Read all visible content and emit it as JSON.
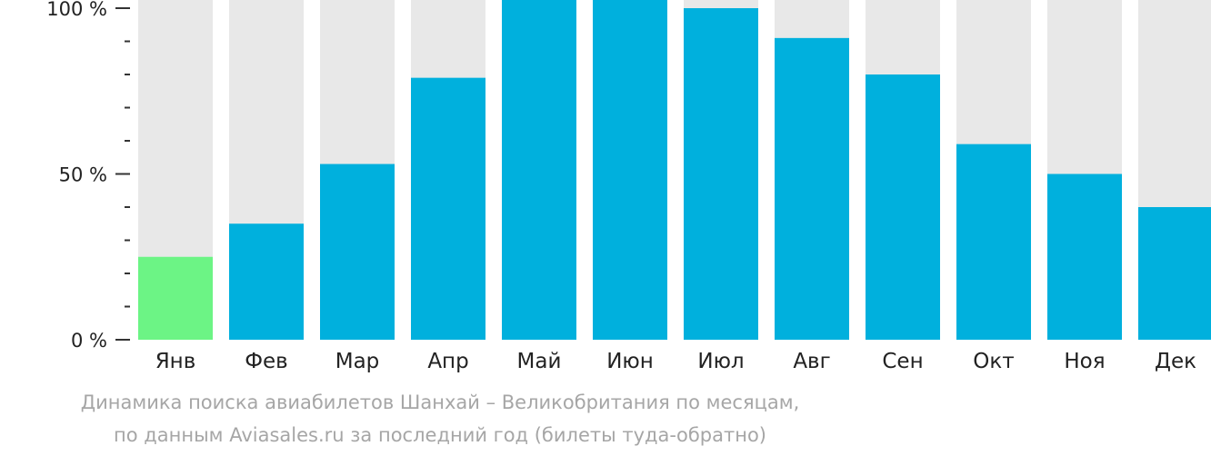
{
  "chart_data": {
    "type": "bar",
    "categories": [
      "Янв",
      "Фев",
      "Мар",
      "Апр",
      "Май",
      "Июн",
      "Июл",
      "Авг",
      "Сен",
      "Окт",
      "Ноя",
      "Дек"
    ],
    "values": [
      25,
      35,
      53,
      79,
      103,
      105,
      100,
      91,
      80,
      59,
      50,
      40
    ],
    "highlight_index": 0,
    "ylim": [
      0,
      100
    ],
    "yticks": [
      {
        "value": 0,
        "label": "0 %"
      },
      {
        "value": 50,
        "label": "50 %"
      },
      {
        "value": 100,
        "label": "100 %"
      }
    ],
    "minor_tick_step": 10,
    "grid": false,
    "colors": {
      "bar": "#00b0dd",
      "highlight": "#6cf485",
      "background_bar": "#e8e8e8",
      "axis": "#333333",
      "tick_label": "#222222"
    }
  },
  "caption": {
    "line1": "Динамика поиска авиабилетов Шанхай – Великобритания по месяцам,",
    "line2": "по данным Aviasales.ru за последний год (билеты туда-обратно)"
  }
}
